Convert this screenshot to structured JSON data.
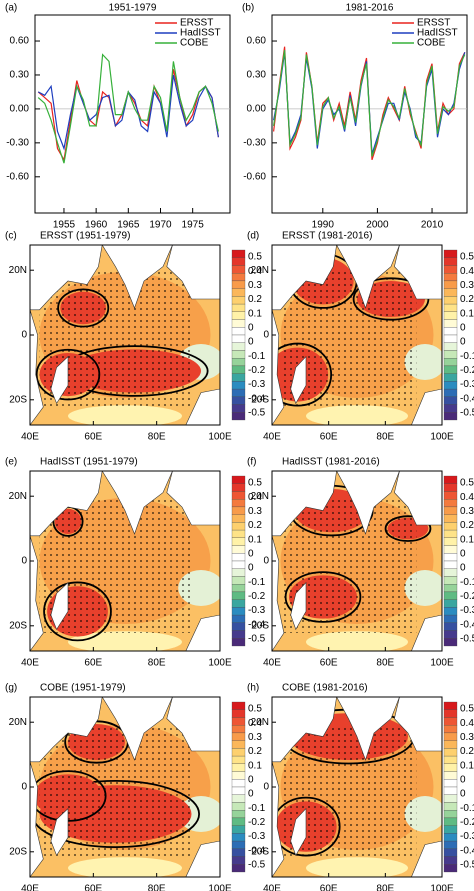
{
  "chart_data": [
    {
      "type": "line",
      "panel": "(a)",
      "title": "1951-1979",
      "x": [
        1951,
        1952,
        1953,
        1954,
        1955,
        1956,
        1957,
        1958,
        1959,
        1960,
        1961,
        1962,
        1963,
        1964,
        1965,
        1966,
        1967,
        1968,
        1969,
        1970,
        1971,
        1972,
        1973,
        1974,
        1975,
        1976,
        1977,
        1978,
        1979
      ],
      "series": [
        {
          "name": "ERSST",
          "color": "#e8231f",
          "values": [
            0.15,
            0.1,
            0.05,
            -0.35,
            -0.45,
            -0.1,
            0.25,
            0.05,
            -0.1,
            -0.15,
            0.15,
            0.1,
            -0.15,
            -0.05,
            0.15,
            0.05,
            -0.1,
            -0.15,
            0.2,
            0.05,
            -0.2,
            0.35,
            0.1,
            -0.15,
            -0.05,
            0.15,
            0.2,
            0.1,
            -0.25
          ]
        },
        {
          "name": "HadISST",
          "color": "#1f3fbf",
          "values": [
            0.15,
            0.12,
            0.2,
            -0.2,
            -0.35,
            -0.05,
            0.2,
            0.05,
            -0.1,
            -0.05,
            0.1,
            0.12,
            -0.15,
            -0.1,
            0.15,
            0.08,
            -0.15,
            -0.2,
            0.15,
            0.05,
            -0.25,
            0.3,
            0.05,
            -0.15,
            -0.1,
            0.1,
            0.2,
            0.1,
            -0.25
          ]
        },
        {
          "name": "COBE",
          "color": "#36b03a",
          "values": [
            0.1,
            0.05,
            -0.1,
            -0.3,
            -0.48,
            -0.15,
            0.2,
            0.08,
            -0.15,
            -0.15,
            0.48,
            0.42,
            -0.05,
            -0.05,
            0.15,
            0.0,
            -0.1,
            -0.1,
            0.2,
            0.1,
            -0.2,
            0.42,
            0.1,
            -0.1,
            0.0,
            0.15,
            0.2,
            0.05,
            -0.2
          ]
        }
      ],
      "xlim": [
        1950.5,
        1980.8
      ],
      "xticks": [
        1955,
        1960,
        1965,
        1970,
        1975
      ],
      "ylim": [
        -0.92,
        0.83
      ],
      "yticks": [
        {
          "value": 0.6,
          "label": "0.60"
        },
        {
          "value": 0.3,
          "label": "0.30"
        },
        {
          "value": 0,
          "label": "0.00"
        },
        {
          "value": -0.3,
          "label": "-0.30"
        },
        {
          "value": -0.6,
          "label": "-0.60"
        }
      ],
      "legend": "upper right"
    },
    {
      "type": "line",
      "panel": "(b)",
      "title": "1981-2016",
      "x": [
        1981,
        1982,
        1983,
        1984,
        1985,
        1986,
        1987,
        1988,
        1989,
        1990,
        1991,
        1992,
        1993,
        1994,
        1995,
        1996,
        1997,
        1998,
        1999,
        2000,
        2001,
        2002,
        2003,
        2004,
        2005,
        2006,
        2007,
        2008,
        2009,
        2010,
        2011,
        2012,
        2013,
        2014,
        2015,
        2016
      ],
      "series": [
        {
          "name": "ERSST",
          "color": "#e8231f",
          "values": [
            -0.2,
            0.2,
            0.55,
            -0.35,
            -0.25,
            -0.1,
            0.5,
            0.2,
            -0.3,
            0.05,
            0.1,
            -0.1,
            0.05,
            -0.15,
            0.15,
            -0.1,
            0.25,
            0.45,
            -0.45,
            -0.3,
            -0.05,
            0.1,
            0.0,
            -0.1,
            0.2,
            -0.05,
            -0.2,
            -0.35,
            0.25,
            0.4,
            -0.2,
            0.05,
            -0.05,
            0.0,
            0.4,
            0.5
          ]
        },
        {
          "name": "HadISST",
          "color": "#1f3fbf",
          "values": [
            -0.1,
            0.15,
            0.5,
            -0.3,
            -0.2,
            -0.05,
            0.45,
            0.18,
            -0.35,
            0.0,
            0.08,
            -0.05,
            0.0,
            -0.2,
            0.12,
            -0.15,
            0.2,
            0.42,
            -0.4,
            -0.25,
            -0.1,
            0.05,
            0.05,
            -0.1,
            0.15,
            0.0,
            -0.25,
            -0.3,
            0.2,
            0.35,
            -0.25,
            0.0,
            -0.05,
            0.05,
            0.35,
            0.5
          ]
        },
        {
          "name": "COBE",
          "color": "#36b03a",
          "values": [
            -0.15,
            0.18,
            0.52,
            -0.32,
            -0.22,
            -0.08,
            0.48,
            0.2,
            -0.32,
            0.02,
            0.1,
            -0.08,
            0.02,
            -0.18,
            0.1,
            -0.12,
            0.22,
            0.4,
            -0.42,
            -0.28,
            -0.08,
            0.08,
            0.02,
            -0.08,
            0.18,
            -0.02,
            -0.22,
            -0.32,
            0.22,
            0.38,
            -0.22,
            0.02,
            -0.02,
            0.02,
            0.38,
            0.48
          ]
        }
      ],
      "xlim": [
        1980.7,
        2016.4
      ],
      "xticks": [
        1990,
        2000,
        2010
      ],
      "ylim": [
        -0.92,
        0.83
      ],
      "yticks": [
        {
          "value": 0.6,
          "label": "0.60"
        },
        {
          "value": 0.3,
          "label": "0.30"
        },
        {
          "value": 0,
          "label": "0.00"
        },
        {
          "value": -0.3,
          "label": "-0.30"
        },
        {
          "value": -0.6,
          "label": "-0.60"
        }
      ],
      "legend": "upper right"
    }
  ],
  "maps": {
    "panels": [
      {
        "label": "(c)",
        "title": "ERSST (1951-1979)"
      },
      {
        "label": "(d)",
        "title": "ERSST (1981-2016)"
      },
      {
        "label": "(e)",
        "title": "HadISST (1951-1979)"
      },
      {
        "label": "(f)",
        "title": "HadISST (1981-2016)"
      },
      {
        "label": "(g)",
        "title": "COBE (1951-1979)"
      },
      {
        "label": "(h)",
        "title": "COBE (1981-2016)"
      }
    ],
    "lat_labels": [
      "20N",
      "0",
      "20S"
    ],
    "lon_labels": [
      "40E",
      "60E",
      "80E",
      "100E"
    ],
    "colorbar_labels": [
      "0.5",
      "0.4",
      "0.3",
      "0.2",
      "0.1",
      "0",
      "0",
      "-0.1",
      "-0.2",
      "-0.3",
      "-0.4",
      "-0.5"
    ]
  }
}
